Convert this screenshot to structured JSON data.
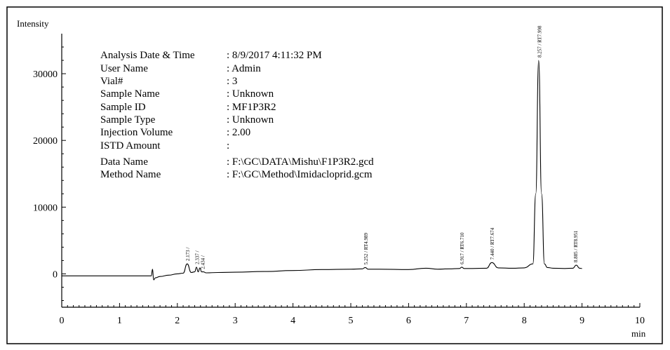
{
  "chart_data": {
    "type": "line",
    "ylabel": "Intensity",
    "xlabel": "min",
    "xlim": [
      0,
      10
    ],
    "ylim": [
      -5000,
      36000
    ],
    "x_ticks": [
      0,
      1,
      2,
      3,
      4,
      5,
      6,
      7,
      8,
      9,
      10
    ],
    "y_ticks": [
      0,
      10000,
      20000,
      30000
    ],
    "grid": false,
    "series": [
      {
        "x": [
          0.0,
          0.5,
          1.0,
          1.4,
          1.55,
          1.57,
          1.59,
          1.62,
          1.7,
          1.85,
          2.0,
          2.1,
          2.17,
          2.24,
          2.3,
          2.33,
          2.36,
          2.39,
          2.42,
          2.45,
          2.5,
          2.7,
          3.0,
          3.5,
          4.0,
          4.5,
          5.0,
          5.2,
          5.25,
          5.3,
          5.5,
          6.0,
          6.3,
          6.5,
          6.7,
          6.88,
          6.92,
          6.96,
          7.1,
          7.35,
          7.44,
          7.55,
          7.8,
          8.0,
          8.15,
          8.2,
          8.25,
          8.3,
          8.35,
          8.4,
          8.5,
          8.7,
          8.84,
          8.9,
          8.96,
          9.0
        ],
        "y": [
          -300,
          -300,
          -300,
          -300,
          -300,
          700,
          -900,
          -600,
          -400,
          -200,
          0,
          100,
          1500,
          200,
          300,
          1000,
          300,
          900,
          300,
          300,
          150,
          200,
          250,
          350,
          500,
          650,
          700,
          750,
          950,
          700,
          700,
          650,
          850,
          700,
          750,
          800,
          1000,
          800,
          800,
          850,
          1700,
          900,
          850,
          900,
          1500,
          12000,
          32000,
          12000,
          1500,
          950,
          850,
          800,
          850,
          1300,
          850,
          800
        ]
      }
    ],
    "annotations": [
      "2.173 /",
      "2.337 /",
      "2.434 /",
      "5.252 / RT4.989",
      "6.917 / RT6.710",
      "7.440 / RT7.674",
      "8.257 / RT7.998",
      "8.885 / RT8.951"
    ],
    "annotation_x": [
      2.173,
      2.337,
      2.434,
      5.252,
      6.917,
      7.44,
      8.257,
      8.885
    ]
  },
  "info": {
    "rows": [
      {
        "label": "Analysis Date & Time",
        "value": ": 8/9/2017 4:11:32 PM"
      },
      {
        "label": "User Name",
        "value": ": Admin"
      },
      {
        "label": "Vial#",
        "value": ": 3"
      },
      {
        "label": "Sample Name",
        "value": ": Unknown"
      },
      {
        "label": "Sample ID",
        "value": ": MF1P3R2"
      },
      {
        "label": "Sample Type",
        "value": ": Unknown"
      },
      {
        "label": "Injection Volume",
        "value": ": 2.00"
      },
      {
        "label": "ISTD Amount",
        "value": ":"
      },
      {
        "label": "Data Name",
        "value": ": F:\\GC\\DATA\\Mishu\\F1P3R2.gcd"
      },
      {
        "label": "Method Name",
        "value": ": F:\\GC\\Method\\Imidacloprid.gcm"
      }
    ]
  },
  "colors": {
    "line": "#000000",
    "border": "#000000",
    "background": "#ffffff"
  }
}
